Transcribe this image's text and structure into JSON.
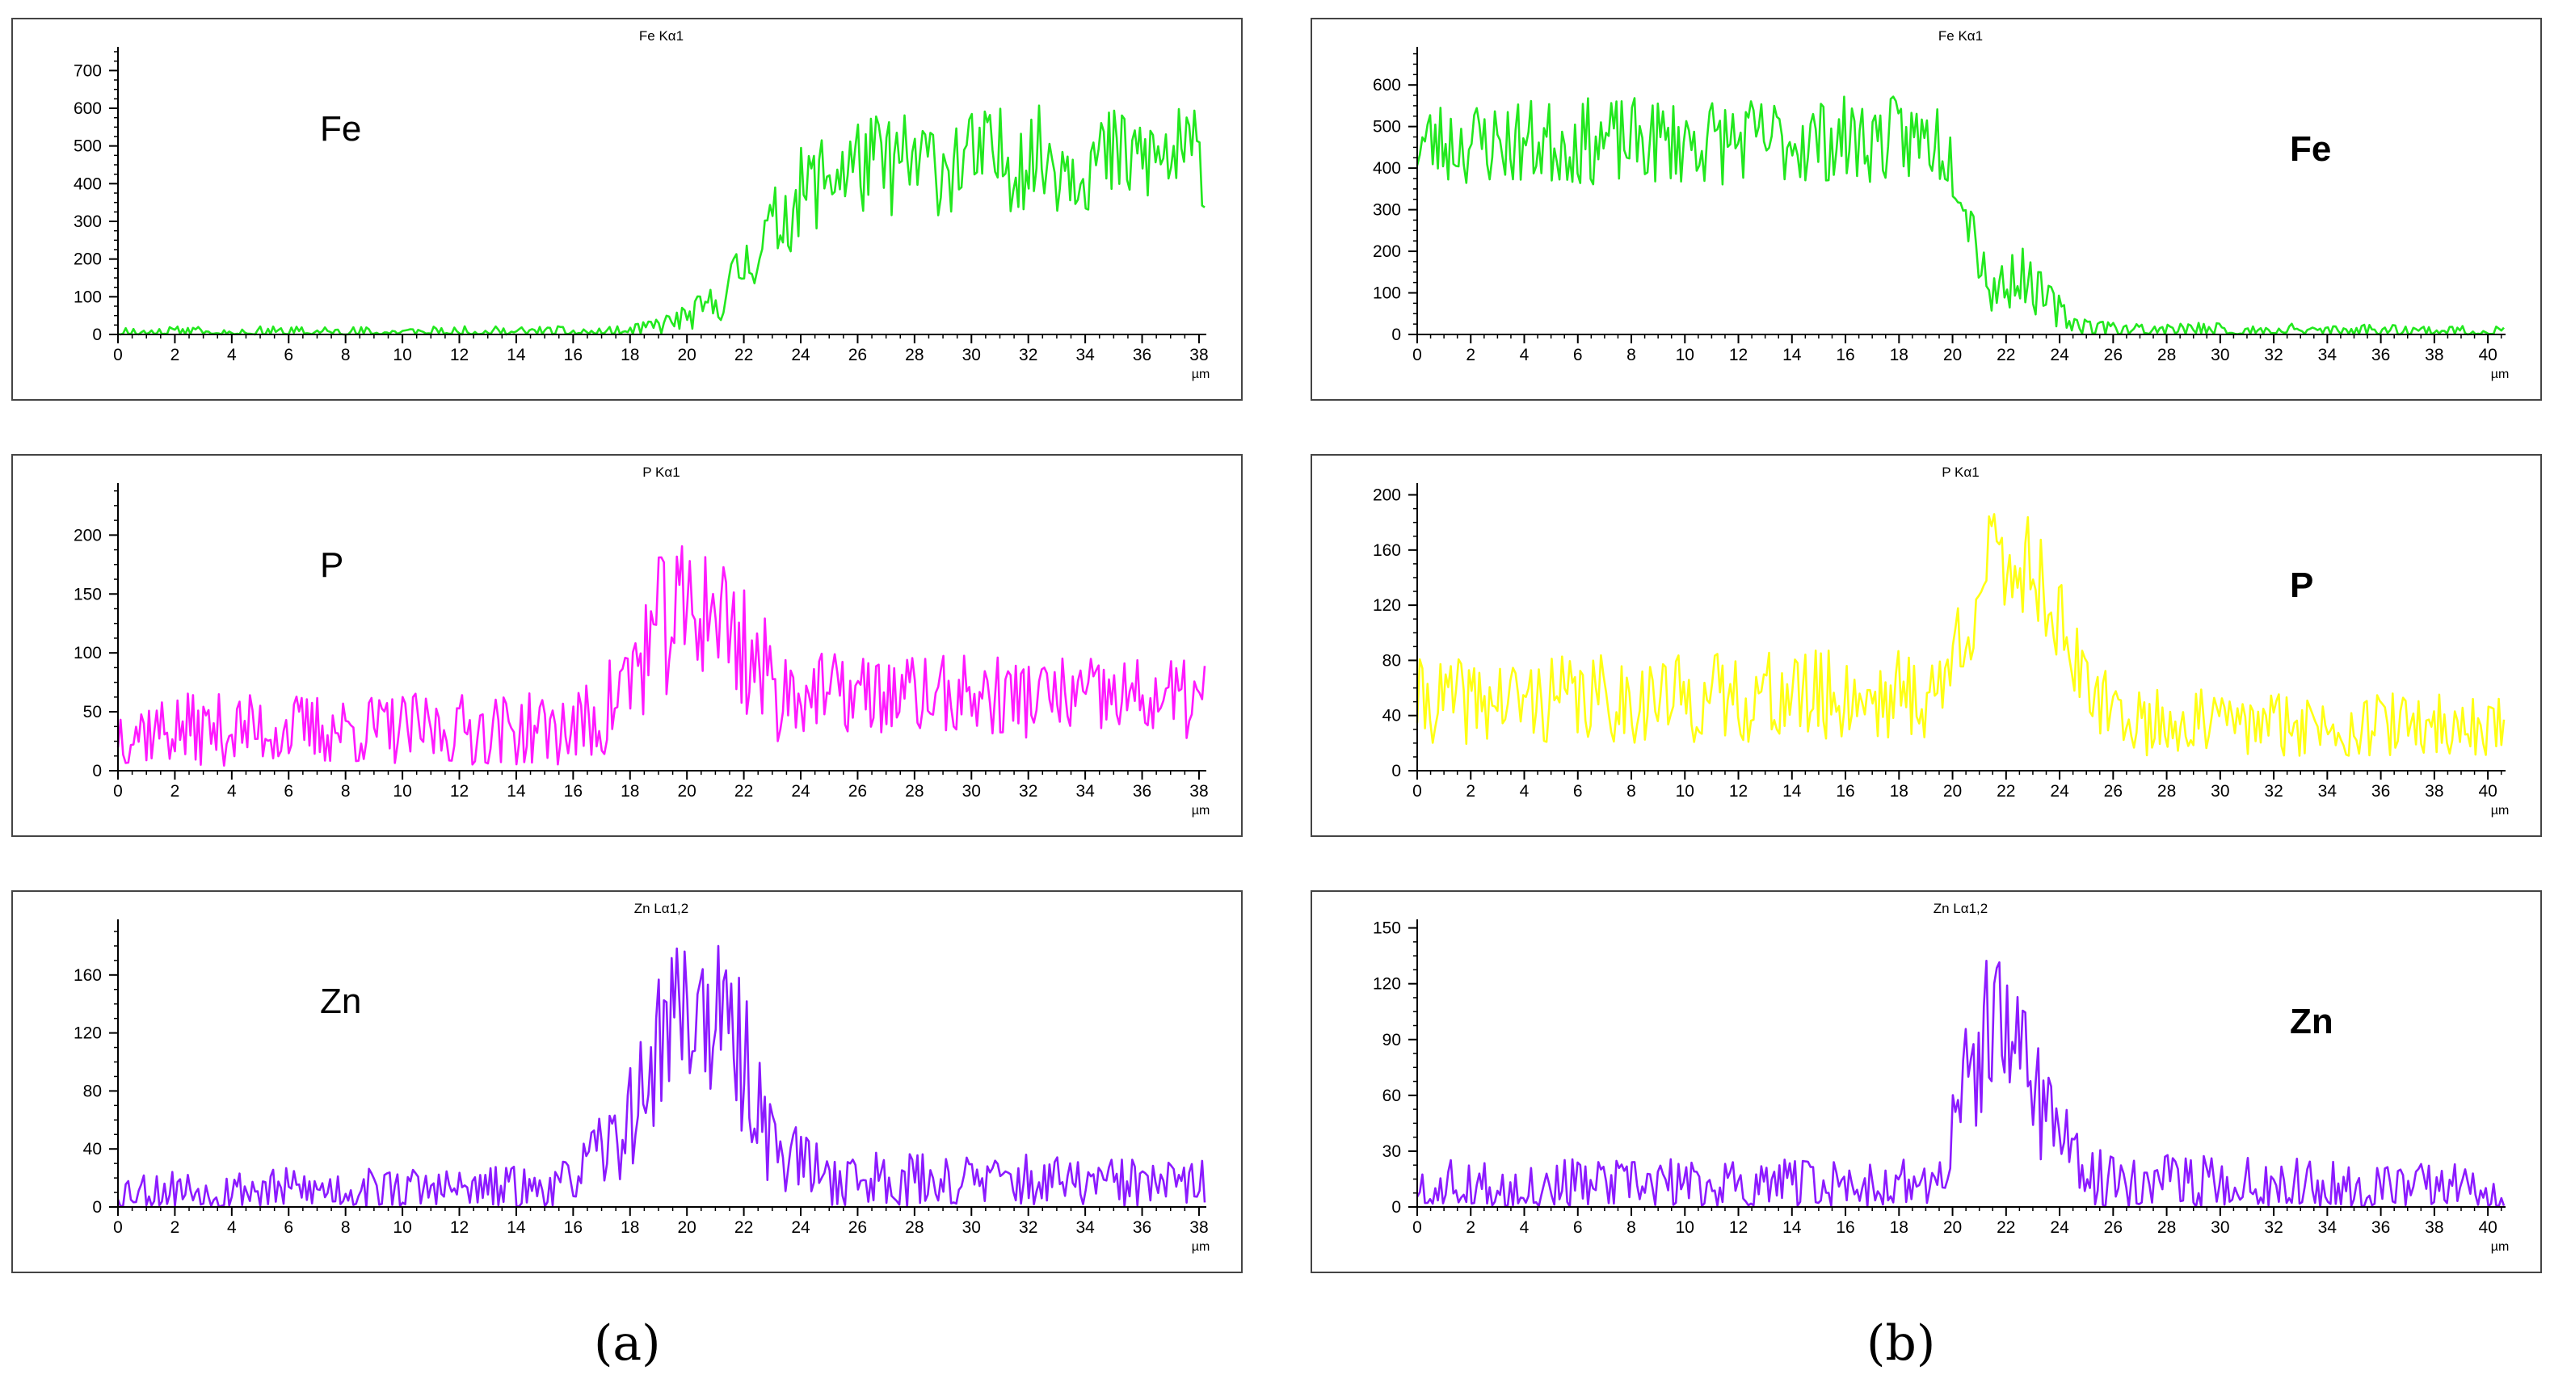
{
  "colors": {
    "fe": "#22e81e",
    "p_a": "#ff19ff",
    "p_b": "#ffff14",
    "zn": "#8c1aff",
    "axis": "#000000"
  },
  "captions": {
    "a": "(a)",
    "b": "(b)"
  },
  "chart_data": [
    {
      "id": "a-fe",
      "type": "line",
      "title": "Fe Kα1",
      "label": "Fe",
      "label_bold": false,
      "xlabel": "µm",
      "color": "fe",
      "xlim": [
        0,
        38.2
      ],
      "ylim": [
        0,
        750
      ],
      "xticks": [
        0,
        2,
        4,
        6,
        8,
        10,
        12,
        14,
        16,
        18,
        20,
        22,
        24,
        26,
        28,
        30,
        32,
        34,
        36,
        38
      ],
      "yticks": [
        0,
        100,
        200,
        300,
        400,
        500,
        600,
        700
      ],
      "profile": [
        [
          0,
          5
        ],
        [
          18,
          5
        ],
        [
          19,
          25
        ],
        [
          20,
          45
        ],
        [
          21,
          80
        ],
        [
          22,
          180
        ],
        [
          23,
          280
        ],
        [
          24,
          370
        ],
        [
          25,
          430
        ],
        [
          26,
          450
        ],
        [
          28,
          450
        ],
        [
          30,
          460
        ],
        [
          32,
          470
        ],
        [
          34,
          460
        ],
        [
          36,
          470
        ],
        [
          38.2,
          470
        ]
      ],
      "noise": [
        [
          0,
          12
        ],
        [
          18,
          12
        ],
        [
          20,
          25
        ],
        [
          22,
          60
        ],
        [
          24,
          90
        ],
        [
          26,
          100
        ],
        [
          38.2,
          100
        ]
      ],
      "seed": 11
    },
    {
      "id": "b-fe",
      "type": "line",
      "title": "Fe Kα1",
      "label": "Fe",
      "label_bold": true,
      "xlabel": "µm",
      "color": "fe",
      "xlim": [
        0,
        40.6
      ],
      "ylim": [
        0,
        680
      ],
      "xticks": [
        0,
        2,
        4,
        6,
        8,
        10,
        12,
        14,
        16,
        18,
        20,
        22,
        24,
        26,
        28,
        30,
        32,
        34,
        36,
        38,
        40
      ],
      "yticks": [
        0,
        100,
        200,
        300,
        400,
        500,
        600
      ],
      "profile": [
        [
          0,
          460
        ],
        [
          10,
          465
        ],
        [
          19.5,
          470
        ],
        [
          20.2,
          400
        ],
        [
          20.8,
          250
        ],
        [
          21.5,
          100
        ],
        [
          22.5,
          150
        ],
        [
          23.5,
          80
        ],
        [
          24.5,
          30
        ],
        [
          26,
          12
        ],
        [
          40.6,
          8
        ]
      ],
      "noise": [
        [
          0,
          75
        ],
        [
          19.5,
          75
        ],
        [
          21,
          60
        ],
        [
          23,
          45
        ],
        [
          25,
          15
        ],
        [
          40.6,
          10
        ]
      ],
      "seed": 23
    },
    {
      "id": "a-p",
      "type": "line",
      "title": "P Kα1",
      "label": "P",
      "label_bold": false,
      "xlabel": "µm",
      "color": "p_a",
      "xlim": [
        0,
        38.2
      ],
      "ylim": [
        0,
        240
      ],
      "xticks": [
        0,
        2,
        4,
        6,
        8,
        10,
        12,
        14,
        16,
        18,
        20,
        22,
        24,
        26,
        28,
        30,
        32,
        34,
        36,
        38
      ],
      "yticks": [
        0,
        50,
        100,
        150,
        200
      ],
      "profile": [
        [
          0,
          35
        ],
        [
          16,
          35
        ],
        [
          17,
          45
        ],
        [
          18,
          80
        ],
        [
          19,
          120
        ],
        [
          20,
          135
        ],
        [
          21,
          140
        ],
        [
          22,
          105
        ],
        [
          23,
          70
        ],
        [
          25,
          65
        ],
        [
          38.2,
          60
        ]
      ],
      "noise": [
        [
          0,
          22
        ],
        [
          16,
          22
        ],
        [
          19,
          45
        ],
        [
          22,
          45
        ],
        [
          24,
          25
        ],
        [
          38.2,
          25
        ]
      ],
      "seed": 37
    },
    {
      "id": "b-p",
      "type": "line",
      "title": "P Kα1",
      "label": "P",
      "label_bold": true,
      "xlabel": "µm",
      "color": "p_b",
      "xlim": [
        0,
        40.6
      ],
      "ylim": [
        0,
        205
      ],
      "xticks": [
        0,
        2,
        4,
        6,
        8,
        10,
        12,
        14,
        16,
        18,
        20,
        22,
        24,
        26,
        28,
        30,
        32,
        34,
        36,
        38,
        40
      ],
      "yticks": [
        0,
        40,
        80,
        120,
        160,
        200
      ],
      "profile": [
        [
          0,
          50
        ],
        [
          19.5,
          55
        ],
        [
          20.5,
          110
        ],
        [
          21.5,
          150
        ],
        [
          23,
          150
        ],
        [
          24,
          110
        ],
        [
          25,
          55
        ],
        [
          27,
          35
        ],
        [
          40.6,
          32
        ]
      ],
      "noise": [
        [
          0,
          22
        ],
        [
          19.5,
          25
        ],
        [
          21,
          30
        ],
        [
          23.5,
          30
        ],
        [
          25,
          18
        ],
        [
          40.6,
          16
        ]
      ],
      "seed": 41
    },
    {
      "id": "a-zn",
      "type": "line",
      "title": "Zn Lα1,2",
      "label": "Zn",
      "label_bold": false,
      "xlabel": "µm",
      "color": "zn",
      "xlim": [
        0,
        38.2
      ],
      "ylim": [
        0,
        195
      ],
      "xticks": [
        0,
        2,
        4,
        6,
        8,
        10,
        12,
        14,
        16,
        18,
        20,
        22,
        24,
        26,
        28,
        30,
        32,
        34,
        36,
        38
      ],
      "yticks": [
        0,
        40,
        80,
        120,
        160
      ],
      "profile": [
        [
          0,
          12
        ],
        [
          15.5,
          12
        ],
        [
          16.5,
          30
        ],
        [
          17.5,
          45
        ],
        [
          18.5,
          80
        ],
        [
          19.5,
          140
        ],
        [
          21,
          130
        ],
        [
          22,
          100
        ],
        [
          23,
          45
        ],
        [
          25,
          20
        ],
        [
          38.2,
          15
        ]
      ],
      "noise": [
        [
          0,
          10
        ],
        [
          16,
          12
        ],
        [
          18,
          25
        ],
        [
          19,
          38
        ],
        [
          22,
          38
        ],
        [
          24,
          15
        ],
        [
          38.2,
          12
        ]
      ],
      "seed": 53
    },
    {
      "id": "b-zn",
      "type": "line",
      "title": "Zn Lα1,2",
      "label": "Zn",
      "label_bold": true,
      "xlabel": "µm",
      "color": "zn",
      "xlim": [
        0,
        40.6
      ],
      "ylim": [
        0,
        152
      ],
      "xticks": [
        0,
        2,
        4,
        6,
        8,
        10,
        12,
        14,
        16,
        18,
        20,
        22,
        24,
        26,
        28,
        30,
        32,
        34,
        36,
        38,
        40
      ],
      "yticks": [
        0,
        30,
        60,
        90,
        120,
        150
      ],
      "profile": [
        [
          0,
          12
        ],
        [
          19.5,
          12
        ],
        [
          20.5,
          65
        ],
        [
          21.5,
          95
        ],
        [
          22.8,
          80
        ],
        [
          23.8,
          45
        ],
        [
          25,
          15
        ],
        [
          40.6,
          10
        ]
      ],
      "noise": [
        [
          0,
          10
        ],
        [
          19.5,
          10
        ],
        [
          21,
          32
        ],
        [
          23,
          30
        ],
        [
          24.5,
          12
        ],
        [
          40.6,
          10
        ]
      ],
      "seed": 67
    }
  ]
}
